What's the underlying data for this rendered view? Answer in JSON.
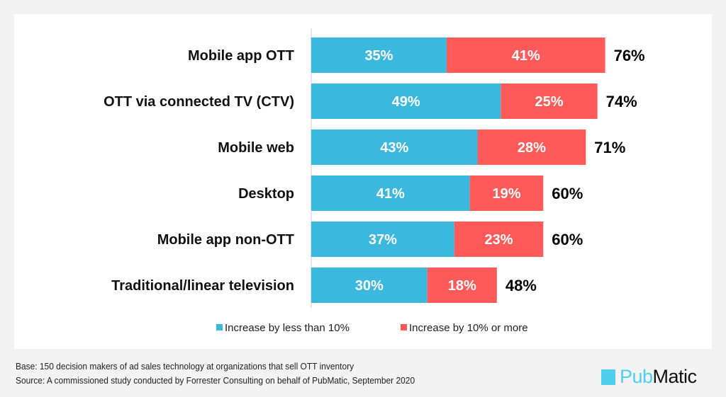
{
  "chart_data": {
    "type": "bar",
    "orientation": "horizontal",
    "stacked": true,
    "categories": [
      "Mobile app OTT",
      "OTT via connected TV (CTV)",
      "Mobile web",
      "Desktop",
      "Mobile app non-OTT",
      "Traditional/linear television"
    ],
    "series": [
      {
        "name": "Increase  by less than 10%",
        "color": "#3bb8de",
        "values": [
          35,
          49,
          43,
          41,
          37,
          30
        ]
      },
      {
        "name": "Increase  by 10% or more",
        "color": "#ff5a5a",
        "values": [
          41,
          25,
          28,
          19,
          23,
          18
        ]
      }
    ],
    "totals": [
      76,
      74,
      71,
      60,
      60,
      48
    ],
    "value_suffix": "%",
    "legend_position": "bottom",
    "grid": false
  },
  "footer": {
    "base": "Base: 150 decision makers of ad sales technology  at organizations that sell OTT inventory",
    "source": "Source: A commissioned study conducted by Forrester Consulting on behalf of PubMatic, September 2020"
  },
  "logo": {
    "text_light": "Pub",
    "text_dark": "Matic",
    "color": "#4fcfee"
  }
}
